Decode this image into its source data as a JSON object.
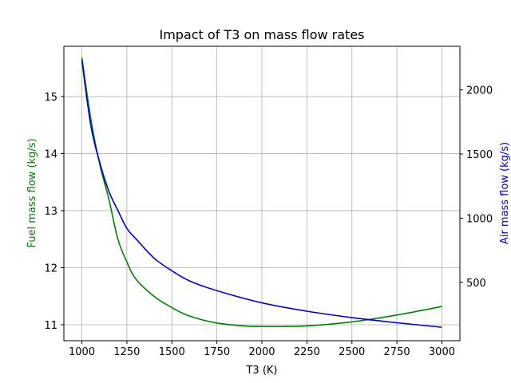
{
  "chart_data": {
    "type": "line",
    "title": "Impact of T3 on mass flow rates",
    "xlabel": "T3 (K)",
    "ylabel_left": "Fuel mass flow (kg/s)",
    "ylabel_right": "Air mass flow (kg/s)",
    "xlim": [
      900,
      3100
    ],
    "ylim_left": [
      10.72,
      15.88
    ],
    "ylim_right": [
      45,
      2340
    ],
    "xticks": [
      1000,
      1250,
      1500,
      1750,
      2000,
      2250,
      2500,
      2750,
      3000
    ],
    "yticks_left": [
      11,
      12,
      13,
      14,
      15
    ],
    "yticks_right": [
      500,
      1000,
      1500,
      2000
    ],
    "grid": true,
    "series": [
      {
        "name": "Fuel mass flow",
        "axis": "left",
        "color": "#008000",
        "x": [
          1000,
          1050,
          1100,
          1150,
          1200,
          1250,
          1300,
          1400,
          1500,
          1600,
          1750,
          1900,
          2000,
          2100,
          2250,
          2500,
          2750,
          3000
        ],
        "y": [
          15.68,
          14.6,
          13.8,
          13.2,
          12.5,
          12.1,
          11.8,
          11.5,
          11.3,
          11.15,
          11.03,
          10.98,
          10.97,
          10.97,
          10.98,
          11.05,
          11.17,
          11.32
        ]
      },
      {
        "name": "Air mass flow",
        "axis": "right",
        "color": "#0000cc",
        "x": [
          1000,
          1050,
          1100,
          1150,
          1200,
          1250,
          1300,
          1400,
          1500,
          1600,
          1750,
          2000,
          2250,
          2500,
          2750,
          3000
        ],
        "y": [
          2230,
          1720,
          1430,
          1210,
          1060,
          920,
          840,
          690,
          590,
          510,
          435,
          340,
          275,
          225,
          185,
          150
        ]
      }
    ]
  }
}
